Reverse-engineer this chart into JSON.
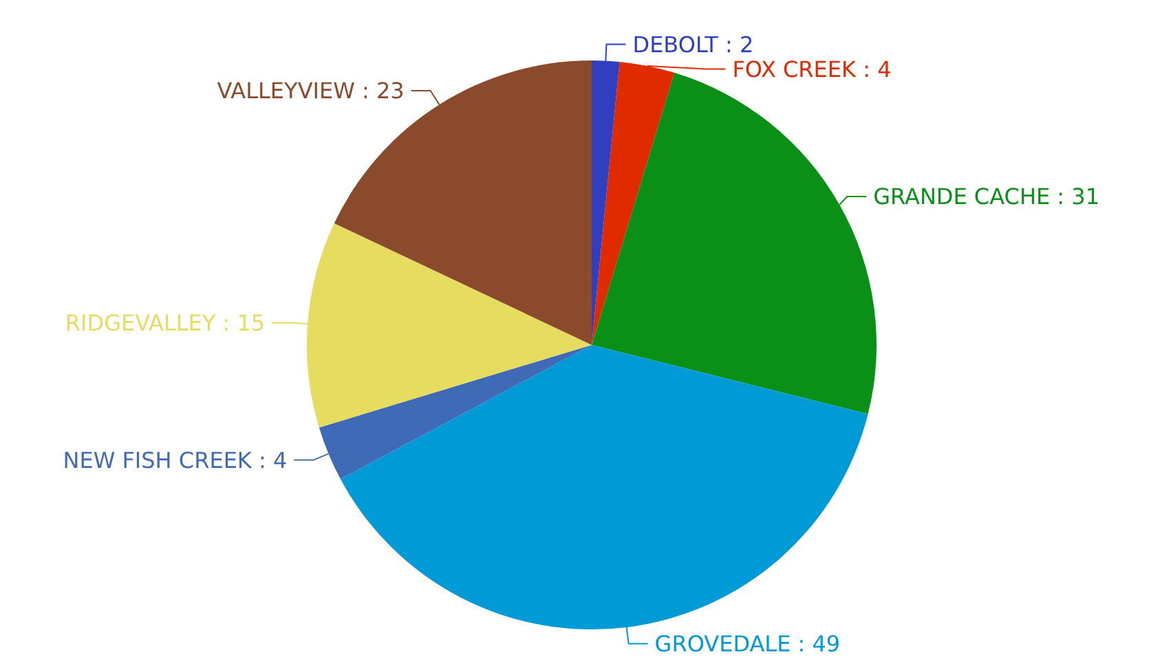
{
  "chart_data": {
    "type": "pie",
    "categories": [
      "DEBOLT",
      "FOX CREEK",
      "GRANDE CACHE",
      "GROVEDALE",
      "NEW FISH CREEK",
      "RIDGEVALLEY",
      "VALLEYVIEW"
    ],
    "values": [
      2,
      4,
      31,
      49,
      4,
      15,
      23
    ],
    "value_labels": [
      ": 2",
      ": 4",
      ": 31",
      ": 49",
      ": 4",
      ": 15",
      ": 23"
    ],
    "colors": [
      "#2f3fbf",
      "#e02a00",
      "#0a9016",
      "#009ad6",
      "#3f6ab5",
      "#e6dc60",
      "#8b4a2c"
    ],
    "legend": false
  }
}
